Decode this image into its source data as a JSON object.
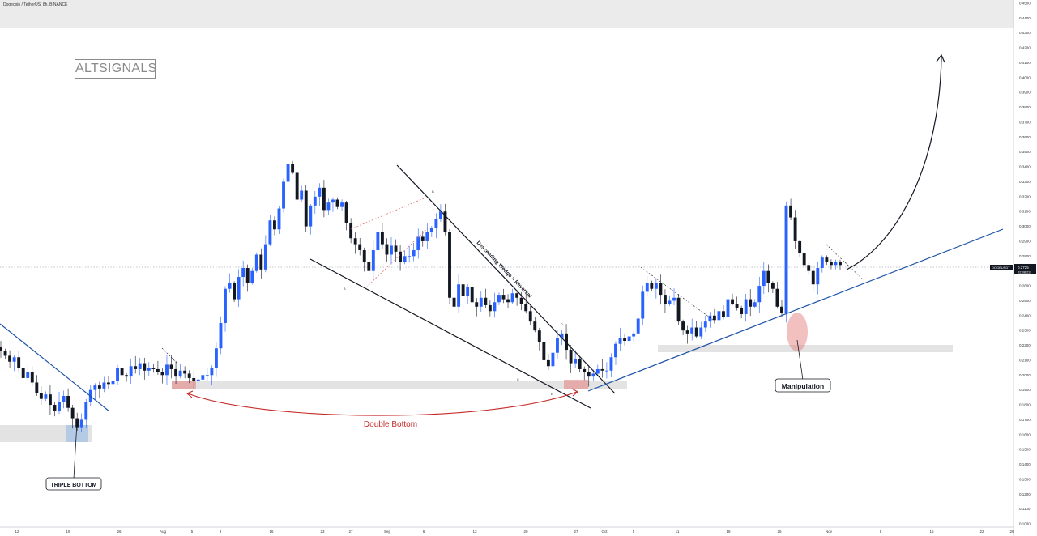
{
  "header": {
    "symbol_info": "Dogecoin / TetherUS, 8h, BINANCE"
  },
  "watermark": {
    "logo_text": "ALTSIGNALS"
  },
  "annotations": {
    "triple_bottom": "TRIPLE BOTTOM",
    "double_bottom": "Double Bottom",
    "wedge": "Descending Wedge = Reversal",
    "manipulation": "Manipulation",
    "wave_a": "A",
    "wave_b": "B",
    "wave_c": "C",
    "wave_d": "D",
    "wave_e": "E"
  },
  "price_marker": {
    "symbol": "DOGEUSDT",
    "price": "0.2725",
    "countdown": "02:38:23"
  },
  "colors": {
    "up_candle": "#2962ff",
    "down_candle": "#131722",
    "trendline": "#1e53a8",
    "zone": "#e3e3e3",
    "highlight_red": "#e57373",
    "double_bottom_arrow": "#c62828",
    "triple_bottom_zone": "#90b8e8"
  },
  "chart_data": {
    "type": "candlestick",
    "title": "Dogecoin / TetherUS, 8h, BINANCE",
    "ylim": [
      0.1,
      0.45
    ],
    "y_ticks": [
      "0.4500",
      "0.4400",
      "0.4300",
      "0.4200",
      "0.4100",
      "0.4000",
      "0.3900",
      "0.3800",
      "0.3700",
      "0.3600",
      "0.3500",
      "0.3400",
      "0.3300",
      "0.3200",
      "0.3100",
      "0.3000",
      "0.2900",
      "0.2800",
      "0.2700",
      "0.2600",
      "0.2500",
      "0.2400",
      "0.2300",
      "0.2200",
      "0.2100",
      "0.2000",
      "0.1900",
      "0.1800",
      "0.1700",
      "0.1600",
      "0.1500",
      "0.1400",
      "0.1300",
      "0.1200",
      "0.1100",
      "0.1000"
    ],
    "x_ticks": [
      "12",
      "19",
      "26",
      "Aug",
      "5",
      "9",
      "16",
      "23",
      "27",
      "Sep",
      "6",
      "13",
      "20",
      "27",
      "Oct",
      "5",
      "11",
      "18",
      "25",
      "Nov",
      "8",
      "15",
      "22",
      "29"
    ],
    "trajectory": [
      [
        0.216,
        0.213,
        0.209,
        0.212,
        0.205,
        0.198,
        0.202,
        0.195,
        0.188,
        0.184,
        0.187,
        0.18,
        0.176,
        0.182,
        0.186,
        0.178,
        0.171,
        0.165,
        0.17,
        0.182,
        0.19,
        0.193,
        0.191,
        0.195,
        0.194,
        0.196,
        0.205,
        0.2,
        0.199,
        0.206,
        0.204,
        0.208,
        0.203,
        0.205,
        0.204,
        0.202,
        0.2,
        0.207,
        0.204,
        0.199,
        0.203,
        0.201,
        0.198,
        0.196,
        0.197,
        0.2
      ],
      [
        0.2,
        0.205,
        0.218,
        0.235,
        0.258,
        0.262,
        0.251,
        0.266,
        0.272,
        0.262,
        0.27,
        0.281,
        0.271,
        0.288,
        0.304,
        0.298,
        0.312,
        0.33,
        0.342,
        0.336,
        0.318,
        0.324,
        0.3,
        0.314,
        0.32,
        0.326,
        0.311,
        0.316,
        0.318,
        0.313,
        0.316,
        0.302,
        0.292,
        0.288,
        0.284,
        0.276,
        0.27,
        0.284,
        0.296,
        0.288,
        0.281,
        0.287,
        0.283,
        0.276,
        0.28
      ],
      [
        0.28,
        0.284,
        0.293,
        0.29,
        0.296,
        0.299,
        0.305,
        0.31,
        0.296,
        0.252,
        0.246,
        0.261,
        0.253,
        0.259,
        0.249,
        0.246,
        0.252,
        0.247,
        0.243,
        0.249,
        0.254,
        0.251,
        0.249,
        0.255,
        0.252,
        0.248,
        0.243,
        0.236,
        0.23,
        0.222,
        0.21,
        0.206,
        0.215,
        0.225,
        0.228,
        0.217,
        0.208,
        0.211,
        0.204,
        0.202,
        0.199,
        0.201,
        0.204,
        0.203
      ],
      [
        0.203,
        0.212,
        0.221,
        0.225,
        0.223,
        0.226,
        0.228,
        0.238,
        0.256,
        0.262,
        0.258,
        0.262,
        0.254,
        0.248,
        0.25,
        0.252,
        0.236,
        0.23,
        0.228,
        0.232,
        0.226,
        0.232,
        0.236,
        0.24,
        0.237,
        0.243,
        0.239,
        0.251,
        0.248,
        0.245,
        0.241,
        0.251,
        0.246,
        0.249,
        0.26,
        0.27,
        0.262,
        0.258,
        0.246,
        0.242,
        0.314,
        0.306,
        0.29,
        0.282,
        0.274,
        0.27,
        0.261,
        0.272,
        0.279,
        0.276,
        0.274,
        0.276,
        0.274
      ]
    ]
  }
}
